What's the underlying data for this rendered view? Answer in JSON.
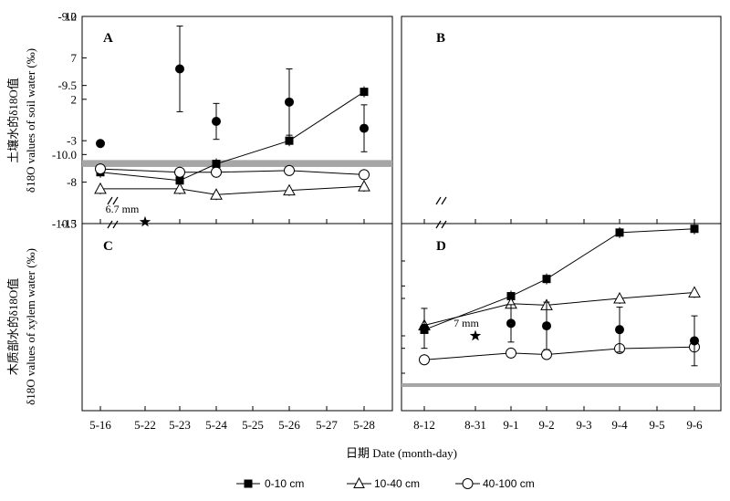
{
  "chart_data": [
    {
      "panel": "A",
      "type": "line",
      "ylabel_cn": "土壤水的δ18O值",
      "ylabel_en": "δ18O values of soil water (‰)",
      "ylim": [
        -13,
        12
      ],
      "yticks": [
        12,
        7,
        2,
        -3,
        -8,
        -13
      ],
      "categories": [
        "5-16",
        "5-22",
        "5-23",
        "5-24",
        "5-25",
        "5-26",
        "5-27",
        "5-28"
      ],
      "series": [
        {
          "name": "0-10 cm",
          "marker": "filled-square",
          "points": [
            [
              "5-16",
              -6.8
            ],
            [
              "5-23",
              -7.8
            ],
            [
              "5-24",
              -5.8
            ],
            [
              "5-26",
              -3.0
            ],
            [
              "5-28",
              2.9
            ]
          ]
        },
        {
          "name": "10-40 cm",
          "marker": "open-triangle",
          "points": [
            [
              "5-16",
              -8.8
            ],
            [
              "5-23",
              -8.8
            ],
            [
              "5-24",
              -9.5
            ],
            [
              "5-26",
              -9.0
            ],
            [
              "5-28",
              -8.5
            ]
          ]
        },
        {
          "name": "40-100 cm",
          "marker": "open-circle",
          "points": [
            [
              "5-16",
              -6.4
            ],
            [
              "5-23",
              -6.8
            ],
            [
              "5-24",
              -6.8
            ],
            [
              "5-26",
              -6.6
            ],
            [
              "5-28",
              -7.1
            ]
          ]
        }
      ],
      "annotations": [
        {
          "text": "6.7 mm",
          "marker": "star",
          "x": "5-22",
          "y": -12.8
        }
      ]
    },
    {
      "panel": "B",
      "type": "line",
      "ylim": [
        -13,
        12
      ],
      "categories": [
        "8-12",
        "8-31",
        "9-1",
        "9-2",
        "9-3",
        "9-4",
        "9-5",
        "9-6"
      ],
      "series": [
        {
          "name": "0-10 cm",
          "marker": "filled-square",
          "points": [
            [
              "8-12",
              -2.2
            ],
            [
              "9-1",
              2.3
            ],
            [
              "9-2",
              4.6
            ],
            [
              "9-4",
              10.8
            ],
            [
              "9-6",
              11.3
            ]
          ]
        },
        {
          "name": "10-40 cm",
          "marker": "open-triangle",
          "points": [
            [
              "8-12",
              -1.6
            ],
            [
              "9-1",
              1.3
            ],
            [
              "9-2",
              1.1
            ],
            [
              "9-4",
              2.0
            ],
            [
              "9-6",
              2.8
            ]
          ]
        },
        {
          "name": "40-100 cm",
          "marker": "open-circle",
          "points": [
            [
              "8-12",
              -6.2
            ],
            [
              "9-1",
              -5.3
            ],
            [
              "9-2",
              -5.5
            ],
            [
              "9-4",
              -4.7
            ],
            [
              "9-6",
              -4.5
            ]
          ]
        }
      ],
      "annotations": [
        {
          "text": "7 mm",
          "marker": "star",
          "x": "8-31",
          "y": -3.0
        }
      ]
    },
    {
      "panel": "C",
      "type": "scatter",
      "ylabel_cn": "木质部水的δ18O值",
      "ylabel_en": "δ18O values of xylem water (‰)",
      "ylim": [
        -10.5,
        -9.0
      ],
      "yticks": [
        -9.0,
        -9.5,
        -10.0,
        -10.5
      ],
      "categories": [
        "5-16",
        "5-22",
        "5-23",
        "5-24",
        "5-25",
        "5-26",
        "5-27",
        "5-28"
      ],
      "points": [
        {
          "x": "5-16",
          "y": -9.92,
          "err": 0.0
        },
        {
          "x": "5-23",
          "y": -9.38,
          "err": 0.31
        },
        {
          "x": "5-24",
          "y": -9.76,
          "err": 0.13
        },
        {
          "x": "5-26",
          "y": -9.62,
          "err": 0.24
        },
        {
          "x": "5-28",
          "y": -9.81,
          "err": 0.17
        }
      ],
      "reference_band": {
        "y_low": -10.09,
        "y_high": -10.04,
        "color": "#a6a6a6"
      }
    },
    {
      "panel": "D",
      "type": "scatter",
      "ylim": [
        -10.5,
        -9.0
      ],
      "categories": [
        "8-12",
        "8-31",
        "9-1",
        "9-2",
        "9-3",
        "9-4",
        "9-5",
        "9-6"
      ],
      "points": [
        {
          "x": "8-12",
          "y": -9.84,
          "err": 0.16
        },
        {
          "x": "9-1",
          "y": -9.8,
          "err": 0.15
        },
        {
          "x": "9-2",
          "y": -9.82,
          "err": 0.19
        },
        {
          "x": "9-4",
          "y": -9.85,
          "err": 0.18
        },
        {
          "x": "9-6",
          "y": -9.94,
          "err": 0.2
        }
      ],
      "reference_band": {
        "y_low": -10.31,
        "y_high": -10.28,
        "color": "#a6a6a6"
      }
    }
  ],
  "xlabel": "日期 Date (month-day)",
  "legend": {
    "placement": "bottom",
    "items": [
      {
        "label": "0-10 cm",
        "marker": "filled-square"
      },
      {
        "label": "10-40 cm",
        "marker": "open-triangle"
      },
      {
        "label": "40-100 cm",
        "marker": "open-circle"
      }
    ]
  }
}
